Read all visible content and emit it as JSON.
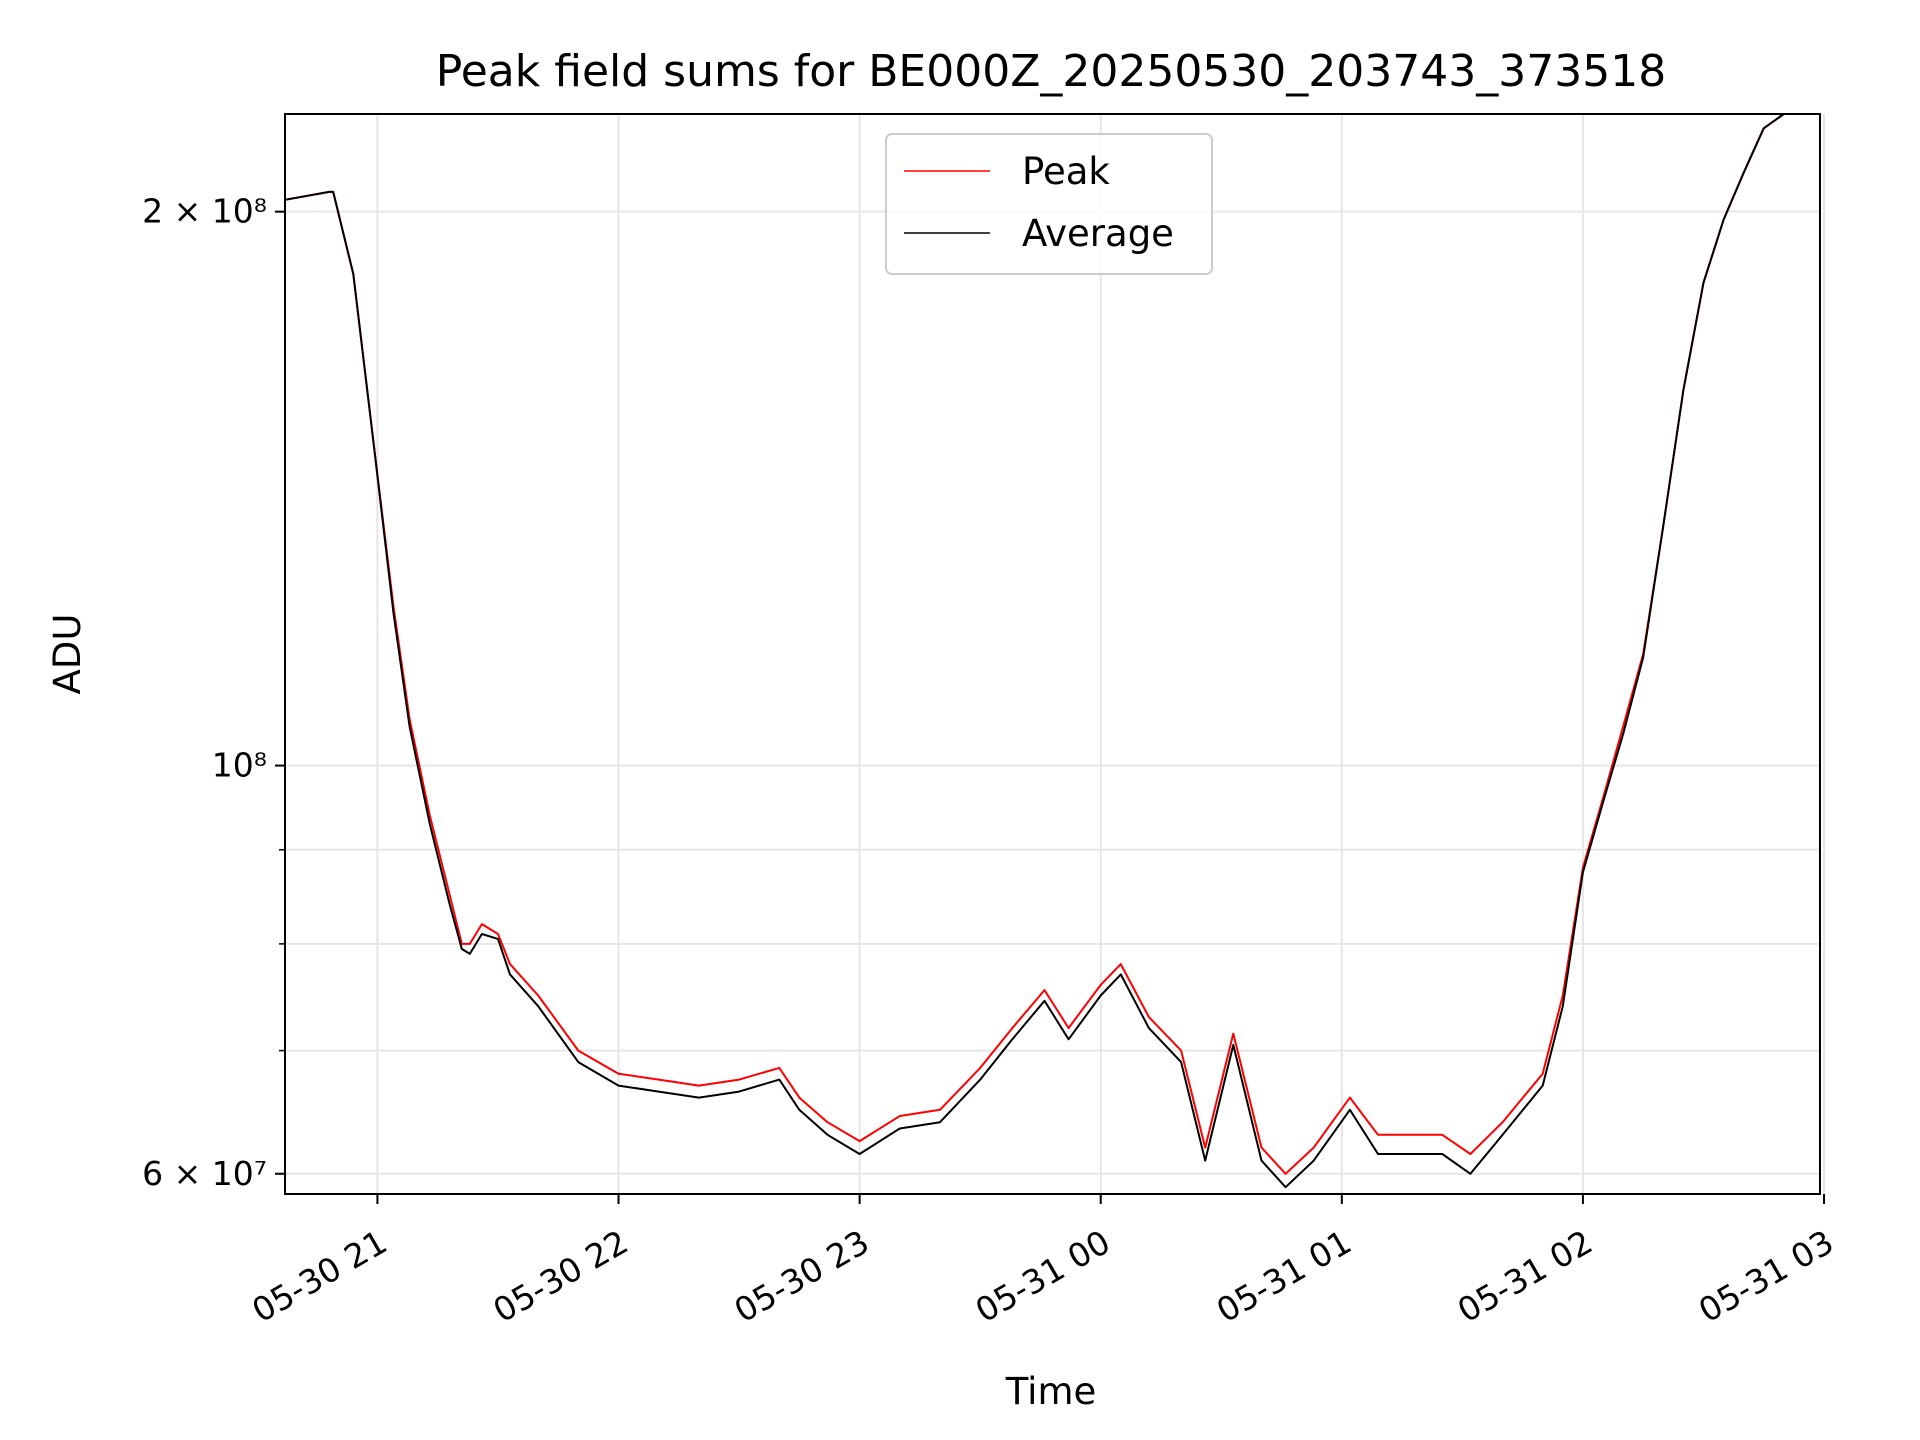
{
  "chart_data": {
    "type": "line",
    "title": "Peak field sums for BE000Z_20250530_203743_373518",
    "xlabel": "Time",
    "ylabel": "ADU",
    "y_scale": "log",
    "ylim": [
      58500000,
      226000000
    ],
    "xlim": [
      "2025-05-30 20:37",
      "2025-05-31 02:59"
    ],
    "grid": true,
    "legend_position": "upper center",
    "x_ticks": [
      {
        "t": "2025-05-30 21:00",
        "label": "05-30 21"
      },
      {
        "t": "2025-05-30 22:00",
        "label": "05-30 22"
      },
      {
        "t": "2025-05-30 23:00",
        "label": "05-30 23"
      },
      {
        "t": "2025-05-31 00:00",
        "label": "05-31 00"
      },
      {
        "t": "2025-05-31 01:00",
        "label": "05-31 01"
      },
      {
        "t": "2025-05-31 02:00",
        "label": "05-31 02"
      },
      {
        "t": "2025-05-31 03:00",
        "label": "05-31 03"
      }
    ],
    "y_major_ticks": [
      {
        "value": 60000000,
        "label": "6 × 10⁷"
      },
      {
        "value": 100000000,
        "label": "10⁸"
      },
      {
        "value": 200000000,
        "label": "2 × 10⁸"
      }
    ],
    "y_minor_ticks": [
      70000000,
      80000000,
      90000000
    ],
    "series": [
      {
        "name": "Peak",
        "color": "#ff0000",
        "x": [
          "2025-05-30 20:37",
          "2025-05-30 20:48",
          "2025-05-30 20:49",
          "2025-05-30 20:54",
          "2025-05-30 20:59",
          "2025-05-30 21:04",
          "2025-05-30 21:08",
          "2025-05-30 21:13",
          "2025-05-30 21:18",
          "2025-05-30 21:21",
          "2025-05-30 21:23",
          "2025-05-30 21:26",
          "2025-05-30 21:30",
          "2025-05-30 21:33",
          "2025-05-30 21:40",
          "2025-05-30 21:50",
          "2025-05-30 22:00",
          "2025-05-30 22:10",
          "2025-05-30 22:20",
          "2025-05-30 22:30",
          "2025-05-30 22:40",
          "2025-05-30 22:45",
          "2025-05-30 22:52",
          "2025-05-30 23:00",
          "2025-05-30 23:10",
          "2025-05-30 23:20",
          "2025-05-30 23:30",
          "2025-05-30 23:38",
          "2025-05-30 23:46",
          "2025-05-30 23:52",
          "2025-05-31 00:00",
          "2025-05-31 00:05",
          "2025-05-31 00:12",
          "2025-05-31 00:20",
          "2025-05-31 00:26",
          "2025-05-31 00:33",
          "2025-05-31 00:40",
          "2025-05-31 00:46",
          "2025-05-31 00:53",
          "2025-05-31 01:02",
          "2025-05-31 01:09",
          "2025-05-31 01:17",
          "2025-05-31 01:25",
          "2025-05-31 01:32",
          "2025-05-31 01:40",
          "2025-05-31 01:50",
          "2025-05-31 01:55",
          "2025-05-31 02:00",
          "2025-05-31 02:05",
          "2025-05-31 02:10",
          "2025-05-31 02:15",
          "2025-05-31 02:20",
          "2025-05-31 02:25",
          "2025-05-31 02:30",
          "2025-05-31 02:35",
          "2025-05-31 02:40",
          "2025-05-31 02:45",
          "2025-05-31 02:50",
          "2025-05-31 02:55"
        ],
        "y": [
          203000000,
          205000000,
          205000000,
          185000000,
          150000000,
          122000000,
          106000000,
          94000000,
          85000000,
          80000000,
          80000000,
          82000000,
          81000000,
          78000000,
          75000000,
          70000000,
          68000000,
          67500000,
          67000000,
          67500000,
          68500000,
          66000000,
          64000000,
          62500000,
          64500000,
          65000000,
          68500000,
          72000000,
          75500000,
          72000000,
          76000000,
          78000000,
          73000000,
          70000000,
          62000000,
          71500000,
          62000000,
          60000000,
          62000000,
          66000000,
          63000000,
          63000000,
          63000000,
          61500000,
          64000000,
          68000000,
          75000000,
          88000000,
          96000000,
          105000000,
          115000000,
          135000000,
          160000000,
          183000000,
          198000000,
          210000000,
          222000000,
          226000000,
          226000000
        ]
      },
      {
        "name": "Average",
        "color": "#000000",
        "x": [
          "2025-05-30 20:37",
          "2025-05-30 20:48",
          "2025-05-30 20:49",
          "2025-05-30 20:54",
          "2025-05-30 20:59",
          "2025-05-30 21:04",
          "2025-05-30 21:08",
          "2025-05-30 21:13",
          "2025-05-30 21:18",
          "2025-05-30 21:21",
          "2025-05-30 21:23",
          "2025-05-30 21:26",
          "2025-05-30 21:30",
          "2025-05-30 21:33",
          "2025-05-30 21:40",
          "2025-05-30 21:50",
          "2025-05-30 22:00",
          "2025-05-30 22:10",
          "2025-05-30 22:20",
          "2025-05-30 22:30",
          "2025-05-30 22:40",
          "2025-05-30 22:45",
          "2025-05-30 22:52",
          "2025-05-30 23:00",
          "2025-05-30 23:10",
          "2025-05-30 23:20",
          "2025-05-30 23:30",
          "2025-05-30 23:38",
          "2025-05-30 23:46",
          "2025-05-30 23:52",
          "2025-05-31 00:00",
          "2025-05-31 00:05",
          "2025-05-31 00:12",
          "2025-05-31 00:20",
          "2025-05-31 00:26",
          "2025-05-31 00:33",
          "2025-05-31 00:40",
          "2025-05-31 00:46",
          "2025-05-31 00:53",
          "2025-05-31 01:02",
          "2025-05-31 01:09",
          "2025-05-31 01:17",
          "2025-05-31 01:25",
          "2025-05-31 01:32",
          "2025-05-31 01:40",
          "2025-05-31 01:50",
          "2025-05-31 01:55",
          "2025-05-31 02:00",
          "2025-05-31 02:05",
          "2025-05-31 02:10",
          "2025-05-31 02:15",
          "2025-05-31 02:20",
          "2025-05-31 02:25",
          "2025-05-31 02:30",
          "2025-05-31 02:35",
          "2025-05-31 02:40",
          "2025-05-31 02:45",
          "2025-05-31 02:50",
          "2025-05-31 02:55"
        ],
        "y": [
          203000000,
          205000000,
          205000000,
          185000000,
          150000000,
          121000000,
          105000000,
          93000000,
          84000000,
          79500000,
          79000000,
          81000000,
          80500000,
          77000000,
          74000000,
          69000000,
          67000000,
          66500000,
          66000000,
          66500000,
          67500000,
          65000000,
          63000000,
          61500000,
          63500000,
          64000000,
          67500000,
          71000000,
          74500000,
          71000000,
          75000000,
          77000000,
          72000000,
          69000000,
          61000000,
          70500000,
          61000000,
          59000000,
          61000000,
          65000000,
          61500000,
          61500000,
          61500000,
          60000000,
          63000000,
          67000000,
          74000000,
          87500000,
          95500000,
          104000000,
          114500000,
          135000000,
          160000000,
          183000000,
          198000000,
          210000000,
          222000000,
          226000000,
          226000000
        ]
      }
    ]
  }
}
